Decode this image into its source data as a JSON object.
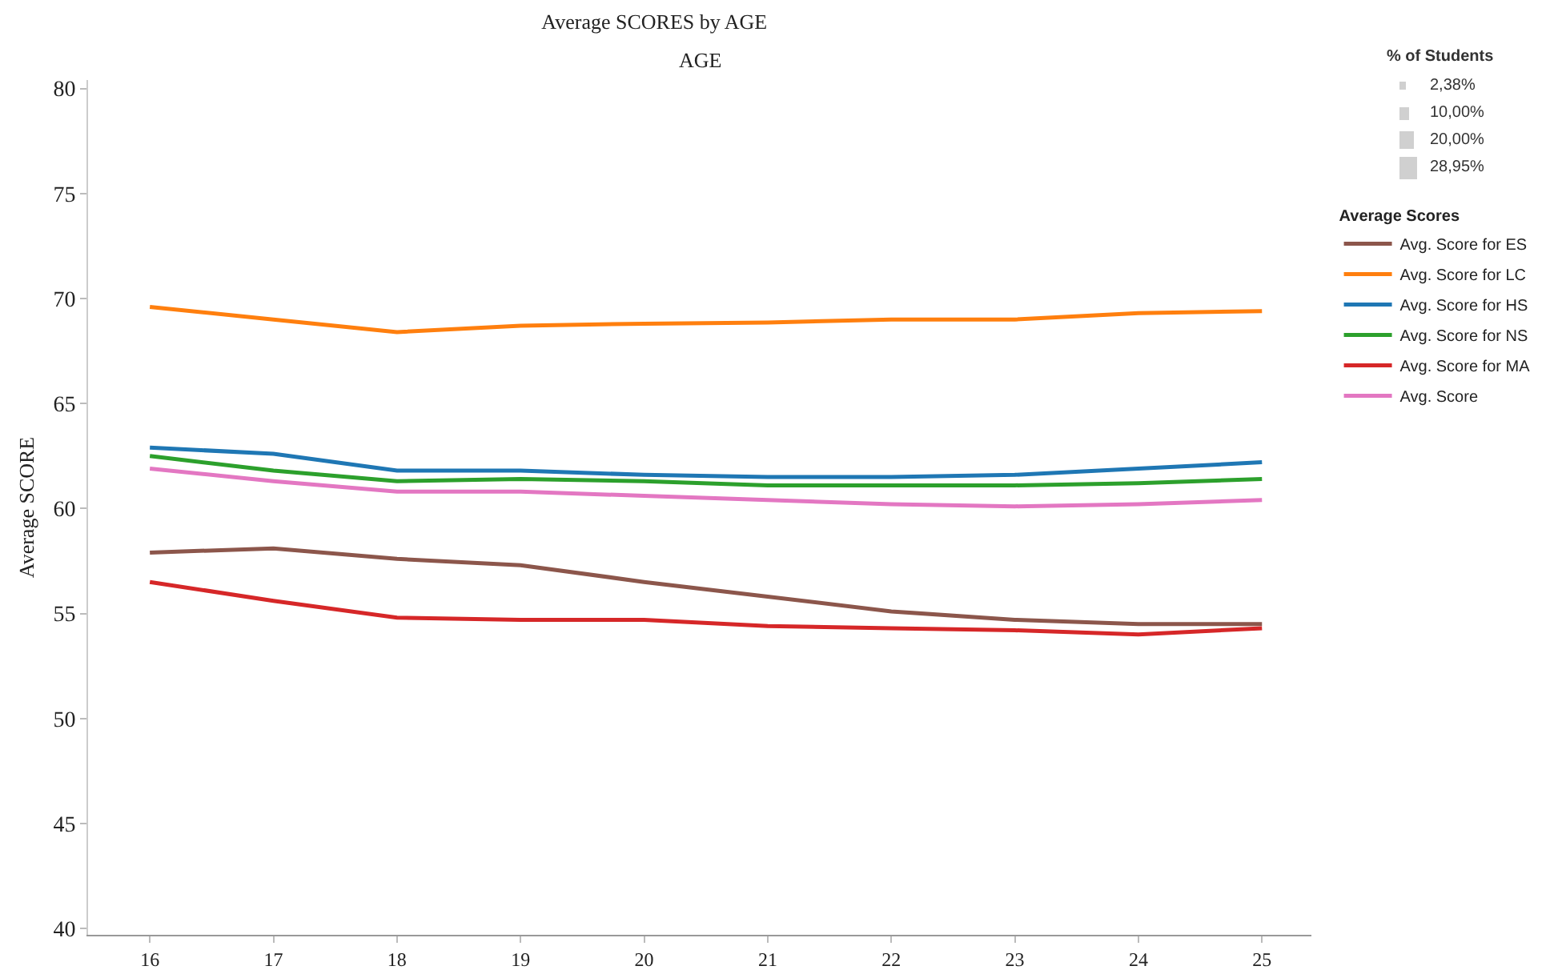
{
  "chart_data": {
    "type": "line",
    "title": "Average SCORES by AGE",
    "xlabel": "AGE",
    "ylabel": "Average SCORE",
    "legend_title": "Average Scores",
    "x": [
      16,
      17,
      18,
      19,
      20,
      21,
      22,
      23,
      24,
      25
    ],
    "xlim": [
      15.5,
      25.4
    ],
    "xticks": [
      16,
      17,
      18,
      19,
      20,
      21,
      22,
      23,
      24,
      25
    ],
    "ylim": [
      39.7,
      80.4
    ],
    "yticks": [
      40,
      45,
      50,
      55,
      60,
      65,
      70,
      75,
      80
    ],
    "grid": false,
    "legend": "right",
    "marker": "none",
    "line_style": "solid",
    "annotations": [
      "% of Students",
      "2,38%",
      "10,00%",
      "20,00%",
      "28,95%"
    ],
    "series": [
      {
        "name": "Avg. Score for ES",
        "color": "#8c564b",
        "values": [
          57.9,
          58.1,
          57.6,
          57.3,
          56.5,
          55.8,
          55.1,
          54.7,
          54.5,
          54.5
        ]
      },
      {
        "name": "Avg. Score for LC",
        "color": "#ff7f0e",
        "values": [
          69.6,
          69.0,
          68.4,
          68.7,
          68.8,
          68.85,
          69.0,
          69.0,
          69.3,
          69.4
        ]
      },
      {
        "name": "Avg. Score for HS",
        "color": "#1f77b4",
        "values": [
          62.9,
          62.6,
          61.8,
          61.8,
          61.6,
          61.5,
          61.5,
          61.6,
          61.9,
          62.2
        ]
      },
      {
        "name": "Avg. Score for NS",
        "color": "#2ca02c",
        "values": [
          62.5,
          61.8,
          61.3,
          61.4,
          61.3,
          61.1,
          61.1,
          61.1,
          61.2,
          61.4
        ]
      },
      {
        "name": "Avg. Score for MA",
        "color": "#d62728",
        "values": [
          56.5,
          55.6,
          54.8,
          54.7,
          54.7,
          54.4,
          54.3,
          54.2,
          54.0,
          54.3
        ]
      },
      {
        "name": "Avg. Score",
        "color": "#e377c2",
        "values": [
          61.9,
          61.3,
          60.8,
          60.8,
          60.6,
          60.4,
          60.2,
          60.1,
          60.2,
          60.4
        ]
      }
    ]
  }
}
